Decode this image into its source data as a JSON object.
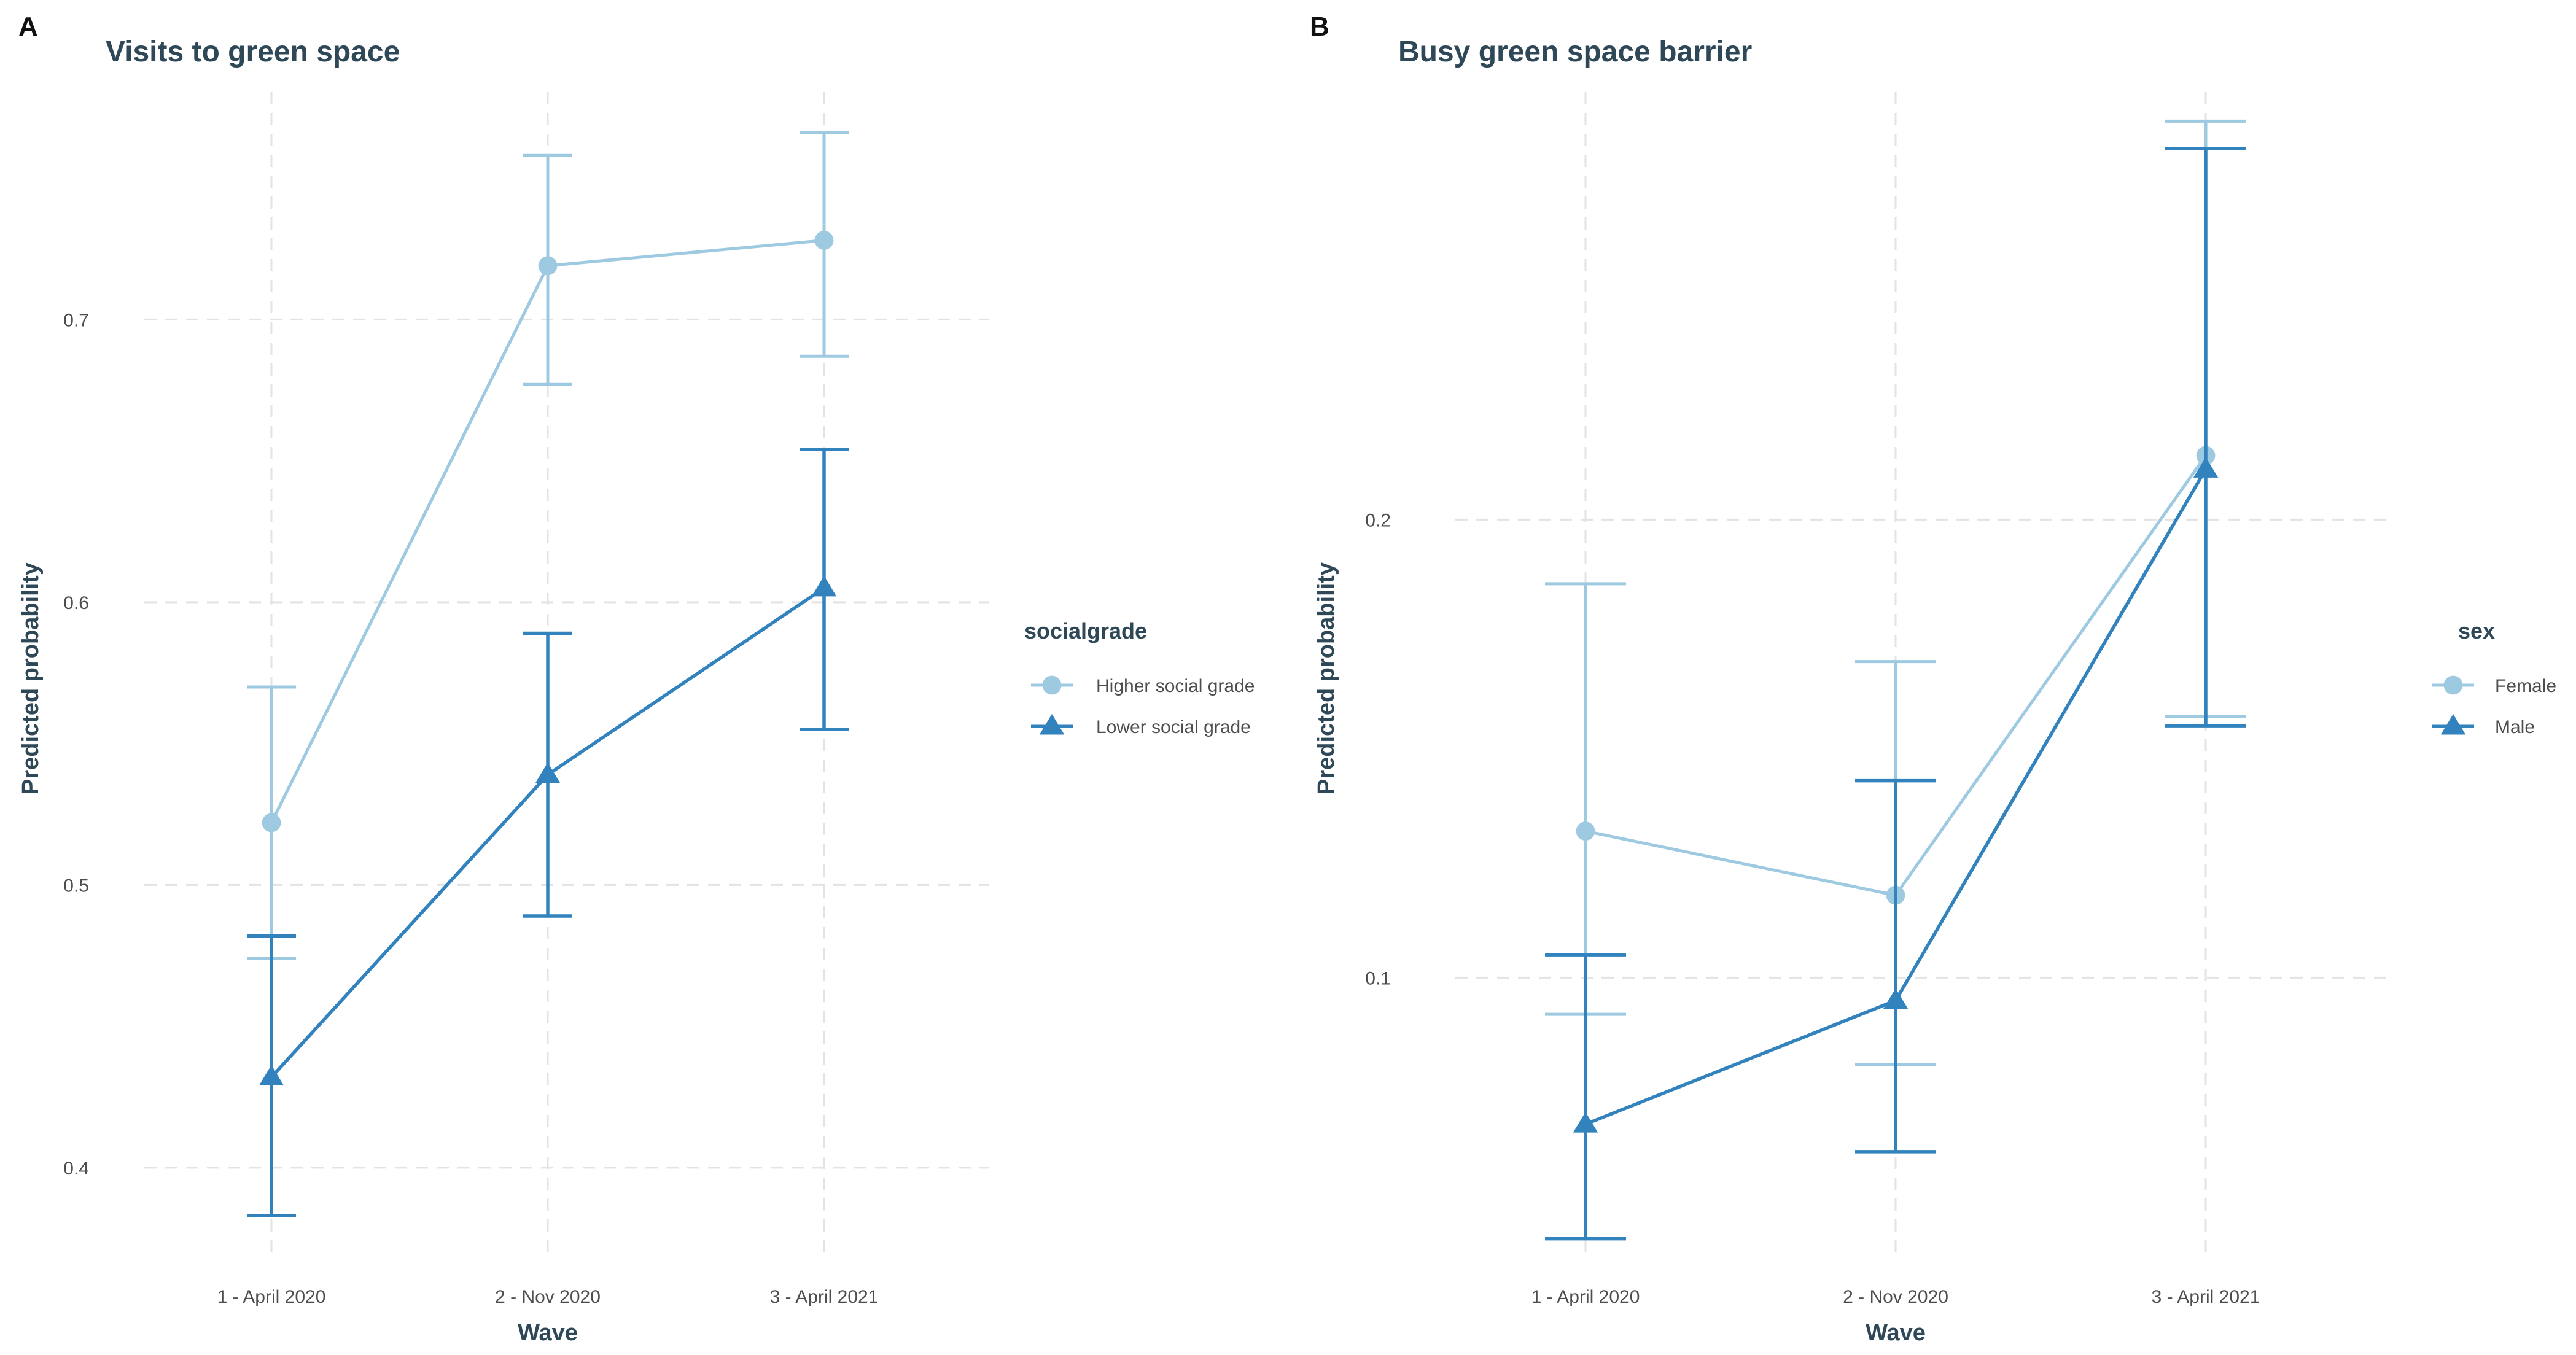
{
  "colors": {
    "series_light": "#9ecae1",
    "series_dark": "#3182bd",
    "title": "#2f4858",
    "axis_title": "#2f4858",
    "tick": "#4d4d4d",
    "grid": "#e3e3e3",
    "legend_text": "#4d4d4d"
  },
  "chart_data": [
    {
      "panel": "A",
      "type": "line",
      "title": "Visits to green space",
      "xlabel": "Wave",
      "ylabel": "Predicted probability",
      "categories": [
        "1 - April 2020",
        "2 - Nov 2020",
        "3 - April 2021"
      ],
      "ylim": [
        0.37,
        0.775
      ],
      "yticks": [
        0.4,
        0.5,
        0.6,
        0.7
      ],
      "ytick_labels": [
        "0.4",
        "0.5",
        "0.6",
        "0.7"
      ],
      "grid": true,
      "legend": {
        "title": "socialgrade",
        "position": "right"
      },
      "series": [
        {
          "name": "Higher social grade",
          "marker": "circle",
          "color": "#9ecae1",
          "values": [
            0.522,
            0.719,
            0.728
          ],
          "lower": [
            0.474,
            0.677,
            0.687
          ],
          "upper": [
            0.57,
            0.758,
            0.766
          ]
        },
        {
          "name": "Lower social grade",
          "marker": "triangle",
          "color": "#3182bd",
          "values": [
            0.432,
            0.539,
            0.605
          ],
          "lower": [
            0.383,
            0.489,
            0.555
          ],
          "upper": [
            0.482,
            0.589,
            0.654
          ]
        }
      ]
    },
    {
      "panel": "B",
      "type": "line",
      "title": "Busy green space barrier",
      "xlabel": "Wave",
      "ylabel": "Predicted probability",
      "categories": [
        "1 - April 2020",
        "2 - Nov 2020",
        "3 - April 2021"
      ],
      "ylim": [
        0.04,
        0.29
      ],
      "yticks": [
        0.1,
        0.2
      ],
      "ytick_labels": [
        "0.1",
        "0.2"
      ],
      "grid": true,
      "legend": {
        "title": "sex",
        "position": "right"
      },
      "series": [
        {
          "name": "Female",
          "marker": "circle",
          "color": "#9ecae1",
          "values": [
            0.132,
            0.118,
            0.214
          ],
          "lower": [
            0.092,
            0.081,
            0.157
          ],
          "upper": [
            0.186,
            0.169,
            0.287
          ]
        },
        {
          "name": "Male",
          "marker": "triangle",
          "color": "#3182bd",
          "values": [
            0.068,
            0.095,
            0.211
          ],
          "lower": [
            0.043,
            0.062,
            0.155
          ],
          "upper": [
            0.105,
            0.143,
            0.281
          ]
        }
      ]
    }
  ]
}
